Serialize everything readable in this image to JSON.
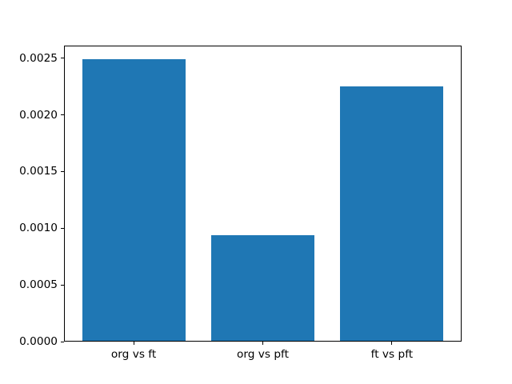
{
  "chart_data": {
    "type": "bar",
    "title": "",
    "categories": [
      "org vs ft",
      "org vs pft",
      "ft vs pft"
    ],
    "values": [
      0.00249,
      0.00094,
      0.00225
    ],
    "bar_color": "#1f77b4",
    "bar_width_fraction": 0.8,
    "xlabel": "",
    "ylabel": "",
    "ylim": [
      0,
      0.00261
    ],
    "yticks": [
      0,
      0.0005,
      0.001,
      0.0015,
      0.002,
      0.0025
    ],
    "ytick_labels": [
      "0.0000",
      "0.0005",
      "0.0010",
      "0.0015",
      "0.0020",
      "0.0025"
    ],
    "grid": false,
    "legend_position": "none"
  },
  "figure": {
    "background_color": "#ffffff",
    "spine_color": "#000000",
    "tick_color": "#000000",
    "label_color": "#000000"
  }
}
